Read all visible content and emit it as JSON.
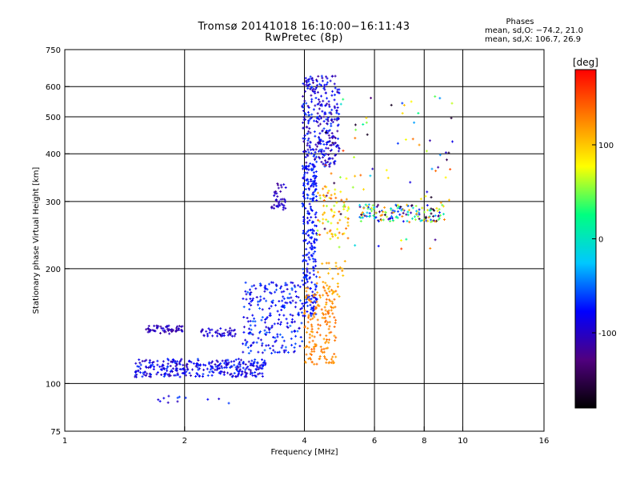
{
  "chart_data": {
    "type": "scatter",
    "title": "Tromsø 20141018 16:10:00−16:11:43",
    "subtitle": "RwPretec (8p)",
    "xlabel": "Frequency [MHz]",
    "ylabel": "Stationary phase Virtual Height [km]",
    "x_scale": "log",
    "y_scale": "log",
    "xlim": [
      1,
      16
    ],
    "ylim": [
      75,
      750
    ],
    "x_ticks": [
      1,
      2,
      4,
      6,
      8,
      10,
      16
    ],
    "y_ticks": [
      75,
      100,
      200,
      300,
      400,
      500,
      600,
      750
    ],
    "grid_x": [
      2,
      4,
      6,
      8,
      10
    ],
    "grid_y": [
      100,
      200,
      300,
      400,
      500,
      600
    ],
    "grid": true,
    "colorbar": {
      "label": "[deg]",
      "range": [
        -180,
        180
      ],
      "ticks": [
        100,
        0,
        -100
      ],
      "colors": [
        "#000000",
        "#50007f",
        "#0000ff",
        "#00c8ff",
        "#00ff80",
        "#ffff00",
        "#ff8000",
        "#ff0000"
      ]
    },
    "stats": {
      "heading": "Phases",
      "o_mode": "mean, sd,O: −74.2, 21.0",
      "x_mode": "mean, sd,X: 106.7, 26.9"
    },
    "clusters": [
      {
        "x": [
          1.5,
          3.2
        ],
        "y": [
          104,
          116
        ],
        "n": 320,
        "phase": [
          -110,
          -60
        ]
      },
      {
        "x": [
          1.6,
          2.0
        ],
        "y": [
          135,
          142
        ],
        "n": 60,
        "phase": [
          -120,
          -90
        ]
      },
      {
        "x": [
          2.2,
          2.7
        ],
        "y": [
          133,
          140
        ],
        "n": 45,
        "phase": [
          -110,
          -80
        ]
      },
      {
        "x": [
          2.8,
          3.95
        ],
        "y": [
          120,
          185
        ],
        "n": 230,
        "phase": [
          -100,
          -50
        ]
      },
      {
        "x": [
          3.95,
          4.3
        ],
        "y": [
          150,
          380
        ],
        "n": 260,
        "phase": [
          -90,
          -60
        ]
      },
      {
        "x": [
          3.95,
          4.9
        ],
        "y": [
          370,
          640
        ],
        "n": 300,
        "phase": [
          -120,
          -60
        ]
      },
      {
        "x": [
          3.3,
          3.6
        ],
        "y": [
          285,
          335
        ],
        "n": 40,
        "phase": [
          -120,
          -90
        ]
      },
      {
        "x": [
          4.0,
          4.8
        ],
        "y": [
          112,
          180
        ],
        "n": 160,
        "phase": [
          115,
          140
        ]
      },
      {
        "x": [
          4.3,
          5.1
        ],
        "y": [
          160,
          210
        ],
        "n": 40,
        "phase": [
          100,
          130
        ]
      },
      {
        "x": [
          4.3,
          5.2
        ],
        "y": [
          240,
          330
        ],
        "n": 70,
        "phase": [
          50,
          150
        ]
      },
      {
        "x": [
          5.5,
          9.0
        ],
        "y": [
          265,
          295
        ],
        "n": 150,
        "phase": [
          -170,
          130
        ]
      },
      {
        "x": [
          4.4,
          9.5
        ],
        "y": [
          220,
          600
        ],
        "n": 90,
        "phase": [
          -170,
          160
        ]
      },
      {
        "x": [
          1.7,
          2.6
        ],
        "y": [
          88,
          95
        ],
        "n": 12,
        "phase": [
          -110,
          -60
        ]
      }
    ]
  }
}
